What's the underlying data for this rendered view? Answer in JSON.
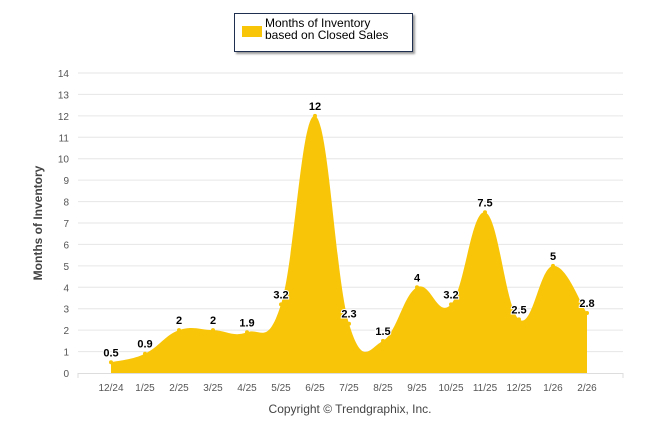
{
  "chart_data": {
    "type": "area",
    "title": "",
    "legend": {
      "label": "Months of Inventory based on Closed Sales",
      "placement": "top-center"
    },
    "xlabel": "",
    "ylabel": "Months of Inventory",
    "ylim": [
      0,
      14
    ],
    "yticks": [
      0,
      1,
      2,
      3,
      4,
      5,
      6,
      7,
      8,
      9,
      10,
      11,
      12,
      13,
      14
    ],
    "grid": true,
    "categories": [
      "12/24",
      "1/25",
      "2/25",
      "3/25",
      "4/25",
      "5/25",
      "6/25",
      "7/25",
      "8/25",
      "9/25",
      "10/25",
      "11/25",
      "12/25",
      "1/26",
      "2/26"
    ],
    "series": [
      {
        "name": "Months of Inventory based on Closed Sales",
        "values": [
          0.5,
          0.9,
          2,
          2,
          1.9,
          3.2,
          12,
          2.3,
          1.5,
          4,
          3.2,
          7.5,
          2.5,
          5,
          2.8
        ],
        "labels": [
          "0.5",
          "0.9",
          "2",
          "2",
          "1.9",
          "3.2",
          "12",
          "2.3",
          "1.5",
          "4",
          "3.2",
          "7.5",
          "2.5",
          "5",
          "2.8"
        ]
      }
    ],
    "colors": {
      "fill": "#f8c508",
      "grid": "#e6e6e6"
    },
    "footer": "Copyright © Trendgraphix, Inc."
  }
}
